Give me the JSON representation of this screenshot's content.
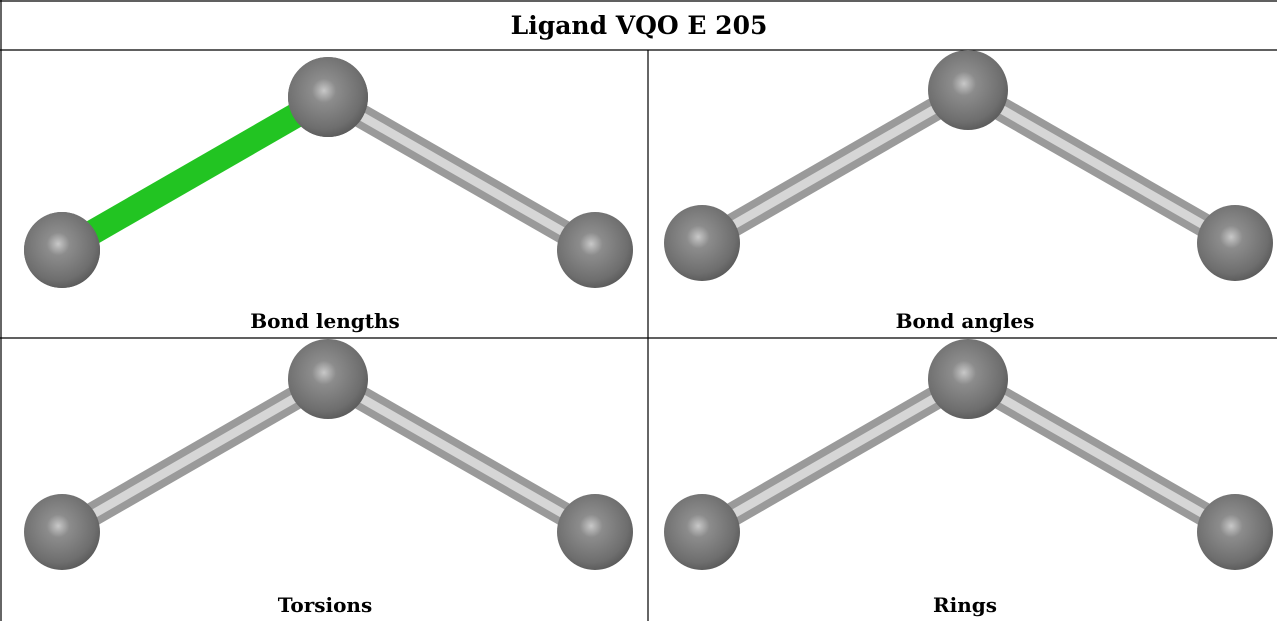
{
  "header": {
    "title": "Ligand VQO E 205"
  },
  "panels": [
    {
      "label": "Bond lengths"
    },
    {
      "label": "Bond angles"
    },
    {
      "label": "Torsions"
    },
    {
      "label": "Rings"
    }
  ]
}
